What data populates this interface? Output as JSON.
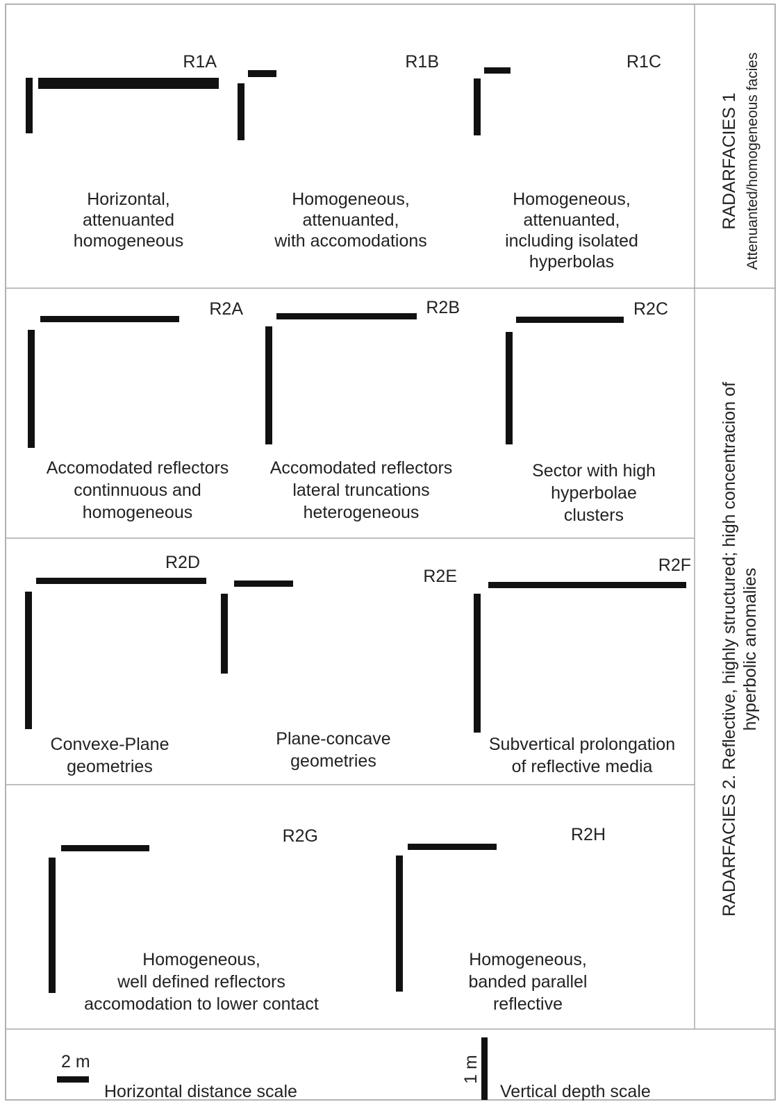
{
  "radarfacies": [
    {
      "title": "RADARFACIES 1",
      "subtitle": "Attenuanted/homogeneous facies"
    },
    {
      "title": "RADARFACIES 2. Reflective, highly structured; high concentracion of",
      "subtitle": "hyperbolic anomalies"
    }
  ],
  "panels": [
    {
      "id": "R1A",
      "caption": [
        "Horizontal,",
        "attenuanted",
        "homogeneous"
      ]
    },
    {
      "id": "R1B",
      "caption": [
        "Homogeneous,",
        "attenuanted,",
        "with accomodations"
      ]
    },
    {
      "id": "R1C",
      "caption": [
        "Homogeneous,",
        "attenuanted,",
        "including isolated",
        "hyperbolas"
      ]
    },
    {
      "id": "R2A",
      "caption": [
        "Accomodated reflectors",
        "continnuous and",
        "homogeneous"
      ]
    },
    {
      "id": "R2B",
      "caption": [
        "Accomodated reflectors",
        "lateral truncations",
        "heterogeneous"
      ]
    },
    {
      "id": "R2C",
      "caption": [
        "Sector with high",
        "hyperbolae",
        "clusters"
      ]
    },
    {
      "id": "R2D",
      "caption": [
        "Convexe-Plane",
        "geometries"
      ]
    },
    {
      "id": "R2E",
      "caption": [
        "Plane-concave",
        "geometries"
      ]
    },
    {
      "id": "R2F",
      "caption": [
        "Subvertical prolongation",
        "of reflective media"
      ]
    },
    {
      "id": "R2G",
      "caption": [
        "Homogeneous,",
        "well defined reflectors",
        "accomodation to lower contact"
      ]
    },
    {
      "id": "R2H",
      "caption": [
        "Homogeneous,",
        "banded parallel",
        "reflective"
      ]
    }
  ],
  "legend": {
    "horizontal_scale": "2 m",
    "horizontal_label": "Horizontal distance scale",
    "vertical_scale": "1 m",
    "vertical_label": "Vertical depth scale"
  }
}
